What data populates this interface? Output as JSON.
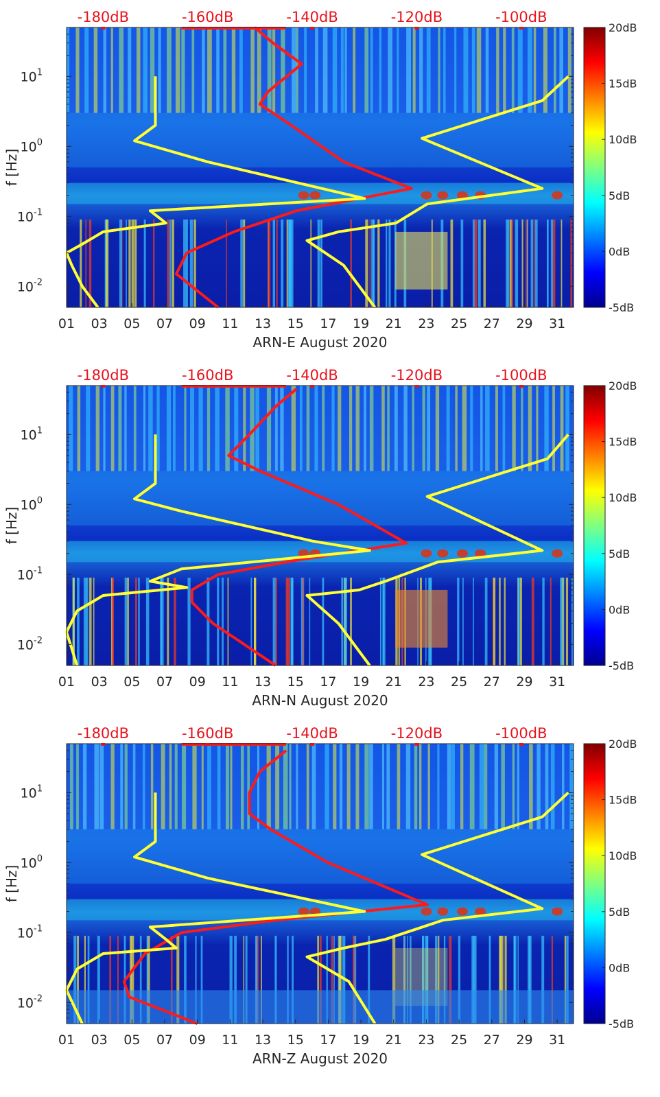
{
  "chart_data": [
    {
      "type": "heatmap",
      "title": "",
      "xlabel": "ARN-E August 2020",
      "ylabel": "f [Hz]",
      "x_ticks": [
        "01",
        "03",
        "05",
        "07",
        "09",
        "11",
        "13",
        "15",
        "17",
        "19",
        "21",
        "23",
        "25",
        "27",
        "29",
        "31"
      ],
      "x_range_days": [
        1,
        32
      ],
      "y_ticks": [
        "10^-2",
        "10^-1",
        "10^0",
        "10^1"
      ],
      "y_scale": "log",
      "y_range_hz": [
        0.005,
        50
      ],
      "top_axis_ticks": [
        "-180dB",
        "-160dB",
        "-140dB",
        "-120dB",
        "-100dB"
      ],
      "top_axis_range_db": [
        -187,
        -90
      ],
      "colorbar_ticks": [
        "20dB",
        "15dB",
        "10dB",
        "5dB",
        "0dB",
        "-5dB"
      ],
      "colorbar_range_db": [
        -5,
        20
      ],
      "colormap": "jet",
      "series": [
        {
          "color": "#ff1a1a",
          "points": [
            [
              -151,
              50
            ],
            [
              -147.5,
              30
            ],
            [
              -142,
              15
            ],
            [
              -148.5,
              6
            ],
            [
              -150,
              4
            ],
            [
              -144,
              2
            ],
            [
              -134,
              0.6
            ],
            [
              -121,
              0.25
            ],
            [
              -143,
              0.12
            ],
            [
              -155,
              0.06
            ],
            [
              -164,
              0.03
            ],
            [
              -166,
              0.015
            ],
            [
              -158,
              0.005
            ]
          ]
        },
        {
          "color": "#ffff33",
          "points": [
            [
              -170,
              10
            ],
            [
              -170,
              2
            ],
            [
              -174,
              1.2
            ],
            [
              -160,
              0.6
            ],
            [
              -130,
              0.18
            ],
            [
              -171,
              0.12
            ],
            [
              -168,
              0.08
            ],
            [
              -180,
              0.06
            ],
            [
              -184,
              0.04
            ],
            [
              -187,
              0.03
            ],
            [
              -186,
              0.02
            ],
            [
              -184,
              0.01
            ],
            [
              -181,
              0.005
            ]
          ]
        },
        {
          "color": "#ffff33",
          "points": [
            [
              -91,
              10
            ],
            [
              -96,
              4.5
            ],
            [
              -119,
              1.3
            ],
            [
              -96,
              0.25
            ],
            [
              -118,
              0.15
            ],
            [
              -124,
              0.08
            ],
            [
              -135,
              0.06
            ],
            [
              -141,
              0.045
            ],
            [
              -134,
              0.02
            ],
            [
              -128,
              0.005
            ]
          ]
        }
      ]
    },
    {
      "type": "heatmap",
      "title": "",
      "xlabel": "ARN-N August 2020",
      "ylabel": "f [Hz]",
      "x_ticks": [
        "01",
        "03",
        "05",
        "07",
        "09",
        "11",
        "13",
        "15",
        "17",
        "19",
        "21",
        "23",
        "25",
        "27",
        "29",
        "31"
      ],
      "x_range_days": [
        1,
        32
      ],
      "y_ticks": [
        "10^-2",
        "10^-1",
        "10^0",
        "10^1"
      ],
      "y_scale": "log",
      "y_range_hz": [
        0.005,
        50
      ],
      "top_axis_ticks": [
        "-180dB",
        "-160dB",
        "-140dB",
        "-120dB",
        "-100dB"
      ],
      "top_axis_range_db": [
        -187,
        -90
      ],
      "colorbar_ticks": [
        "20dB",
        "15dB",
        "10dB",
        "5dB",
        "0dB",
        "-5dB"
      ],
      "colorbar_range_db": [
        -5,
        20
      ],
      "colormap": "jet",
      "series": [
        {
          "color": "#ff1a1a",
          "points": [
            [
              -143,
              45
            ],
            [
              -147,
              25
            ],
            [
              -152,
              10
            ],
            [
              -156,
              5
            ],
            [
              -150,
              3
            ],
            [
              -135,
              1
            ],
            [
              -122,
              0.28
            ],
            [
              -143,
              0.16
            ],
            [
              -158,
              0.1
            ],
            [
              -163,
              0.06
            ],
            [
              -163,
              0.04
            ],
            [
              -159,
              0.02
            ],
            [
              -147,
              0.005
            ]
          ]
        },
        {
          "color": "#ffff33",
          "points": [
            [
              -170,
              10
            ],
            [
              -170,
              2
            ],
            [
              -174,
              1.2
            ],
            [
              -165,
              0.8
            ],
            [
              -140,
              0.3
            ],
            [
              -129,
              0.22
            ],
            [
              -165,
              0.12
            ],
            [
              -171,
              0.08
            ],
            [
              -164,
              0.065
            ],
            [
              -180,
              0.05
            ],
            [
              -185,
              0.03
            ],
            [
              -187,
              0.015
            ],
            [
              -185,
              0.005
            ]
          ]
        },
        {
          "color": "#ffff33",
          "points": [
            [
              -91,
              10
            ],
            [
              -95,
              4.5
            ],
            [
              -118,
              1.3
            ],
            [
              -96,
              0.22
            ],
            [
              -116,
              0.15
            ],
            [
              -126,
              0.08
            ],
            [
              -131,
              0.06
            ],
            [
              -141,
              0.05
            ],
            [
              -135,
              0.02
            ],
            [
              -129,
              0.005
            ]
          ]
        }
      ]
    },
    {
      "type": "heatmap",
      "title": "",
      "xlabel": "ARN-Z August 2020",
      "ylabel": "f [Hz]",
      "x_ticks": [
        "01",
        "03",
        "05",
        "07",
        "09",
        "11",
        "13",
        "15",
        "17",
        "19",
        "21",
        "23",
        "25",
        "27",
        "29",
        "31"
      ],
      "x_range_days": [
        1,
        32
      ],
      "y_ticks": [
        "10^-2",
        "10^-1",
        "10^0",
        "10^1"
      ],
      "y_scale": "log",
      "y_range_hz": [
        0.005,
        50
      ],
      "top_axis_ticks": [
        "-180dB",
        "-160dB",
        "-140dB",
        "-120dB",
        "-100dB"
      ],
      "top_axis_range_db": [
        -187,
        -90
      ],
      "colorbar_ticks": [
        "20dB",
        "15dB",
        "10dB",
        "5dB",
        "0dB",
        "-5dB"
      ],
      "colorbar_range_db": [
        -5,
        20
      ],
      "colormap": "jet",
      "series": [
        {
          "color": "#ff1a1a",
          "points": [
            [
              -145,
              40
            ],
            [
              -150,
              20
            ],
            [
              -152,
              10
            ],
            [
              -152,
              5
            ],
            [
              -148,
              3
            ],
            [
              -137,
              1
            ],
            [
              -118,
              0.25
            ],
            [
              -147,
              0.15
            ],
            [
              -165,
              0.1
            ],
            [
              -172,
              0.05
            ],
            [
              -176,
              0.02
            ],
            [
              -175,
              0.012
            ],
            [
              -162,
              0.005
            ]
          ]
        },
        {
          "color": "#ffff33",
          "points": [
            [
              -170,
              10
            ],
            [
              -170,
              2
            ],
            [
              -174,
              1.2
            ],
            [
              -160,
              0.6
            ],
            [
              -130,
              0.2
            ],
            [
              -171,
              0.12
            ],
            [
              -168,
              0.08
            ],
            [
              -166,
              0.06
            ],
            [
              -180,
              0.05
            ],
            [
              -185,
              0.03
            ],
            [
              -187,
              0.015
            ],
            [
              -184,
              0.005
            ]
          ]
        },
        {
          "color": "#ffff33",
          "points": [
            [
              -91,
              10
            ],
            [
              -96,
              4.5
            ],
            [
              -119,
              1.3
            ],
            [
              -96,
              0.22
            ],
            [
              -115,
              0.15
            ],
            [
              -126,
              0.08
            ],
            [
              -134,
              0.06
            ],
            [
              -141,
              0.045
            ],
            [
              -133,
              0.02
            ],
            [
              -128,
              0.005
            ]
          ]
        }
      ]
    }
  ]
}
